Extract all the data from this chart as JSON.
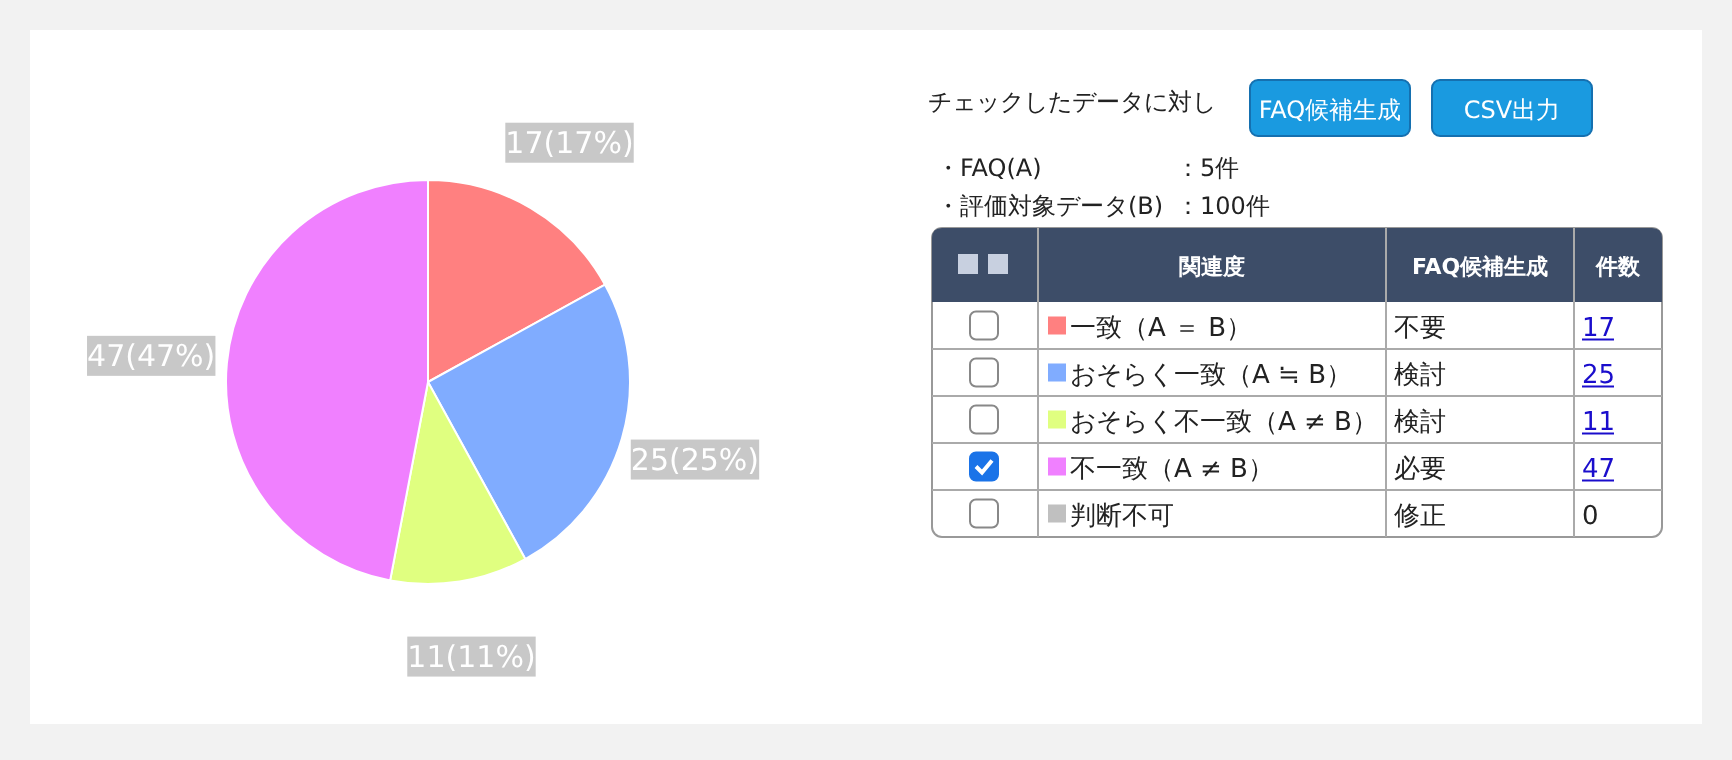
{
  "chart_data": {
    "type": "pie",
    "categories": [
      "一致（A ＝ B）",
      "おそらく一致（A ≒ B）",
      "おそらく不一致（A ≠ B）",
      "不一致（A ≠ B）",
      "判断不可"
    ],
    "values": [
      17,
      25,
      11,
      47,
      0
    ],
    "colors": [
      "#ff8080",
      "#80acff",
      "#e0ff80",
      "#f080ff",
      "#c0c0c0"
    ],
    "value_labels": [
      "17(17%)",
      "25(25%)",
      "11(11%)",
      "47(47%)",
      null
    ],
    "legend": "right",
    "annotations": [
      "チェックしたデータに対し",
      "FAQ候補生成",
      "CSV出力",
      "・FAQ(A)",
      "：5件",
      "・評価対象データ(B)",
      "：100件",
      "関連度",
      "FAQ候補生成",
      "件数",
      "不要",
      "検討",
      "検討",
      "必要",
      "修正",
      "17",
      "25",
      "11",
      "47",
      "0"
    ]
  }
}
